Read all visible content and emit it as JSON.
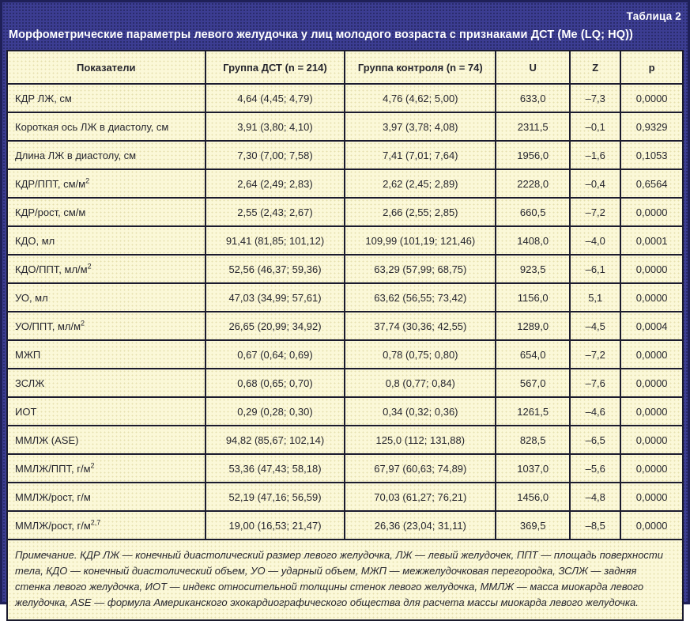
{
  "header": {
    "caption": "Таблица 2",
    "title": "Морфометрические параметры левого желудочка у лиц молодого возраста с признаками ДСТ (Me (LQ; HQ))"
  },
  "table": {
    "columns": [
      "Показатели",
      "Группа ДСТ (n = 214)",
      "Группа контроля (n = 74)",
      "U",
      "Z",
      "p"
    ],
    "rows": [
      {
        "label": "КДР ЛЖ, см",
        "dst": "4,64 (4,45; 4,79)",
        "control": "4,76 (4,62; 5,00)",
        "u": "633,0",
        "z": "–7,3",
        "p": "0,0000"
      },
      {
        "label": "Короткая ось ЛЖ в диастолу, см",
        "dst": "3,91 (3,80; 4,10)",
        "control": "3,97 (3,78; 4,08)",
        "u": "2311,5",
        "z": "–0,1",
        "p": "0,9329"
      },
      {
        "label": "Длина ЛЖ в диастолу, см",
        "dst": "7,30 (7,00; 7,58)",
        "control": "7,41 (7,01; 7,64)",
        "u": "1956,0",
        "z": "–1,6",
        "p": "0,1053"
      },
      {
        "label": "КДР/ППТ, см/м",
        "label_sup": "2",
        "dst": "2,64 (2,49; 2,83)",
        "control": "2,62 (2,45; 2,89)",
        "u": "2228,0",
        "z": "–0,4",
        "p": "0,6564"
      },
      {
        "label": "КДР/рост, см/м",
        "dst": "2,55 (2,43; 2,67)",
        "control": "2,66 (2,55; 2,85)",
        "u": "660,5",
        "z": "–7,2",
        "p": "0,0000"
      },
      {
        "label": "КДО, мл",
        "dst": "91,41 (81,85; 101,12)",
        "control": "109,99 (101,19; 121,46)",
        "u": "1408,0",
        "z": "–4,0",
        "p": "0,0001"
      },
      {
        "label": "КДО/ППТ, мл/м",
        "label_sup": "2",
        "dst": "52,56 (46,37; 59,36)",
        "control": "63,29 (57,99; 68,75)",
        "u": "923,5",
        "z": "–6,1",
        "p": "0,0000"
      },
      {
        "label": "УО, мл",
        "dst": "47,03 (34,99; 57,61)",
        "control": "63,62 (56,55; 73,42)",
        "u": "1156,0",
        "z": "5,1",
        "p": "0,0000"
      },
      {
        "label": "УО/ППТ, мл/м",
        "label_sup": "2",
        "dst": "26,65 (20,99; 34,92)",
        "control": "37,74 (30,36; 42,55)",
        "u": "1289,0",
        "z": "–4,5",
        "p": "0,0004"
      },
      {
        "label": "МЖП",
        "dst": "0,67 (0,64; 0,69)",
        "control": "0,78 (0,75; 0,80)",
        "u": "654,0",
        "z": "–7,2",
        "p": "0,0000"
      },
      {
        "label": "ЗСЛЖ",
        "dst": "0,68 (0,65; 0,70)",
        "control": "0,8 (0,77; 0,84)",
        "u": "567,0",
        "z": "–7,6",
        "p": "0,0000"
      },
      {
        "label": "ИОТ",
        "dst": "0,29 (0,28; 0,30)",
        "control": "0,34 (0,32; 0,36)",
        "u": "1261,5",
        "z": "–4,6",
        "p": "0,0000"
      },
      {
        "label": "ММЛЖ (ASE)",
        "dst": "94,82 (85,67; 102,14)",
        "control": "125,0 (112; 131,88)",
        "u": "828,5",
        "z": "–6,5",
        "p": "0,0000"
      },
      {
        "label": "ММЛЖ/ППТ, г/м",
        "label_sup": "2",
        "dst": "53,36 (47,43; 58,18)",
        "control": "67,97 (60,63; 74,89)",
        "u": "1037,0",
        "z": "–5,6",
        "p": "0,0000"
      },
      {
        "label": "ММЛЖ/рост, г/м",
        "dst": "52,19 (47,16; 56,59)",
        "control": "70,03 (61,27; 76,21)",
        "u": "1456,0",
        "z": "–4,8",
        "p": "0,0000"
      },
      {
        "label": "ММЛЖ/рост, г/м",
        "label_sup": "2,7",
        "dst": "19,00 (16,53; 21,47)",
        "control": "26,36 (23,04; 31,11)",
        "u": "369,5",
        "z": "–8,5",
        "p": "0,0000"
      }
    ]
  },
  "footnote": {
    "text": "Примечание. КДР ЛЖ — конечный диастолический размер левого желудочка, ЛЖ — левый желудочек, ППТ — площадь поверхности тела, КДО — конечный диастолический объем, УО — ударный объем, МЖП — межжелудочковая перегородка, ЗСЛЖ — задняя стенка левого желудочка, ИОТ — индекс относительной толщины стенок левого желудочка, ММЛЖ — масса миокарда левого желудочка, ASE — формула Американского эхокардиографического общества для расчета массы миокарда левого желудочка."
  },
  "colors": {
    "panel_bg": "#3c3d92",
    "panel_dot": "#282a68",
    "cell_bg": "#fbf8d8",
    "cell_dot": "#e6dfae",
    "border": "#1b1b2e",
    "title_text": "#ffffff",
    "body_text": "#26262e"
  }
}
